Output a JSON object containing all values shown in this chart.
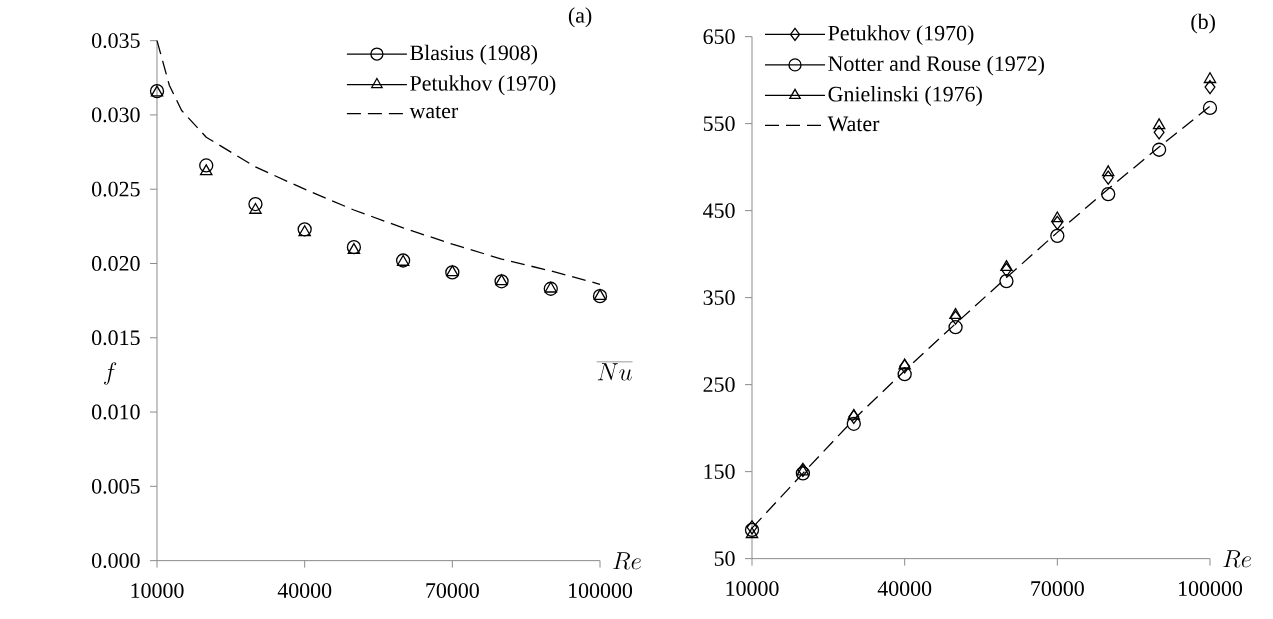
{
  "chart_data": [
    {
      "type": "scatter",
      "xlabel": "Re",
      "ylabel": "f",
      "annotations": [
        "(a)"
      ],
      "x": [
        10000,
        20000,
        30000,
        40000,
        50000,
        60000,
        70000,
        80000,
        90000,
        100000
      ],
      "xlim": [
        10000,
        100000
      ],
      "xticks": [
        10000,
        40000,
        70000,
        100000
      ],
      "ylim": [
        0,
        0.035
      ],
      "yticks": [
        {
          "value": 0,
          "label": "0.000"
        },
        {
          "value": 0.005,
          "label": "0.005"
        },
        {
          "value": 0.01,
          "label": "0.010"
        },
        {
          "value": 0.015,
          "label": "0.015"
        },
        {
          "value": 0.02,
          "label": "0.020"
        },
        {
          "value": 0.025,
          "label": "0.025"
        },
        {
          "value": 0.03,
          "label": "0.030"
        },
        {
          "value": 0.035,
          "label": "0.035"
        }
      ],
      "legend": "top right",
      "series": [
        {
          "name": "Blasius (1908)",
          "color": "#000000",
          "marker": "circle",
          "values": [
            0.0316,
            0.0266,
            0.024,
            0.0223,
            0.0211,
            0.0202,
            0.0194,
            0.0188,
            0.0183,
            0.0178
          ]
        },
        {
          "name": "Petukhov (1970)",
          "color": "#000000",
          "marker": "triangle",
          "values": [
            0.0315,
            0.0262,
            0.0236,
            0.0221,
            0.0209,
            0.0201,
            0.0194,
            0.0188,
            0.0183,
            0.0178
          ]
        },
        {
          "name": "water",
          "type": "line",
          "color": "#000000",
          "marker": "none",
          "line_style": "dashed",
          "x": [
            10000,
            12500,
            15000,
            20000,
            30000,
            40000,
            50000,
            60000,
            70000,
            80000,
            90000,
            100000
          ],
          "values": [
            0.035,
            0.032,
            0.0303,
            0.0285,
            0.0265,
            0.025,
            0.0236,
            0.0224,
            0.0213,
            0.0203,
            0.0195,
            0.0186
          ]
        }
      ]
    },
    {
      "type": "scatter",
      "xlabel": "Re",
      "ylabel": "\\overline{Nu}",
      "annotations": [
        "(b)"
      ],
      "x": [
        10000,
        20000,
        30000,
        40000,
        50000,
        60000,
        70000,
        80000,
        90000,
        100000
      ],
      "xlim": [
        10000,
        100000
      ],
      "xticks": [
        10000,
        40000,
        70000,
        100000
      ],
      "ylim": [
        50,
        650
      ],
      "yticks": [
        50,
        150,
        250,
        350,
        450,
        550,
        650
      ],
      "legend": "top left",
      "series": [
        {
          "name": "Petukhov (1970)",
          "color": "#000000",
          "marker": "diamond",
          "values": [
            86,
            152,
            213,
            271,
            327,
            382,
            436,
            488,
            540,
            592
          ]
        },
        {
          "name": "Notter and Rouse (1972)",
          "color": "#000000",
          "marker": "circle",
          "values": [
            83,
            148,
            205,
            262,
            316,
            369,
            421,
            469,
            520,
            568
          ]
        },
        {
          "name": "Gnielinski (1976)",
          "color": "#000000",
          "marker": "triangle",
          "values": [
            78,
            150,
            214,
            272,
            330,
            385,
            441,
            494,
            548,
            601
          ]
        },
        {
          "name": "Water",
          "type": "line",
          "color": "#000000",
          "marker": "none",
          "line_style": "dashed",
          "values": [
            85,
            148,
            210,
            266,
            320,
            373,
            425,
            475,
            523,
            570
          ]
        }
      ]
    }
  ]
}
